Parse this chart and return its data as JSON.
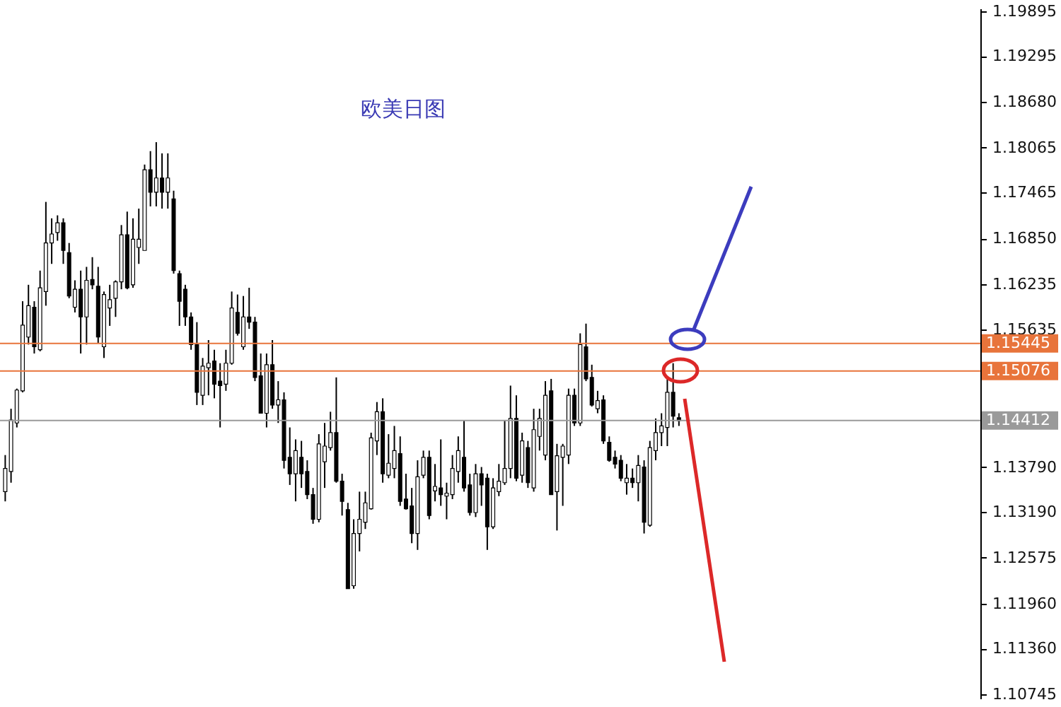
{
  "chart_data": {
    "type": "candlestick",
    "title": "欧美日图",
    "categories": [
      null,
      null,
      null,
      null,
      null,
      null,
      null,
      null,
      null,
      null,
      null,
      null,
      null,
      null,
      null,
      null,
      null,
      null,
      null,
      null,
      null,
      null,
      null,
      null,
      null,
      null,
      null,
      null,
      null,
      null,
      null,
      null,
      null,
      null,
      null,
      null,
      null,
      null,
      null,
      null,
      null,
      null,
      null,
      null,
      null,
      null,
      null,
      null,
      null,
      null,
      null,
      null,
      null,
      null,
      null,
      null,
      null,
      null,
      null,
      null,
      null,
      null,
      null,
      null,
      null,
      null,
      null,
      null,
      null,
      null,
      null,
      null,
      null,
      null,
      null,
      null,
      null,
      null,
      null,
      null,
      null,
      null,
      null,
      null,
      null,
      null,
      null,
      null,
      null,
      null,
      null,
      null,
      null,
      null,
      null,
      null,
      null,
      null,
      null,
      null,
      null,
      null,
      null,
      null,
      null,
      null,
      null,
      null,
      null,
      null,
      null,
      null,
      null,
      null,
      null,
      null,
      null,
      null,
      null,
      null,
      null,
      null,
      null,
      null,
      null,
      null,
      null,
      null,
      null,
      null,
      null,
      null,
      null,
      null,
      null,
      null,
      null,
      null,
      null,
      null,
      null,
      null,
      null,
      null,
      null,
      null,
      null,
      null,
      null,
      null,
      null,
      null,
      null,
      null,
      null,
      null,
      null,
      null,
      null,
      null,
      null,
      null,
      null,
      null,
      null,
      null,
      null,
      null
    ],
    "ohlc": [
      [
        1.1346,
        1.1395,
        1.1333,
        1.1377
      ],
      [
        1.1373,
        1.1457,
        1.1358,
        1.1442
      ],
      [
        1.1438,
        1.1484,
        1.1432,
        1.1482
      ],
      [
        1.1481,
        1.1601,
        1.1479,
        1.1569
      ],
      [
        1.1553,
        1.1623,
        1.1543,
        1.1595
      ],
      [
        1.1593,
        1.1601,
        1.1531,
        1.154
      ],
      [
        1.1536,
        1.1642,
        1.1534,
        1.1619
      ],
      [
        1.1614,
        1.1734,
        1.1595,
        1.1679
      ],
      [
        1.1679,
        1.1712,
        1.1651,
        1.1691
      ],
      [
        1.1693,
        1.1716,
        1.1682,
        1.1706
      ],
      [
        1.1706,
        1.1712,
        1.1651,
        1.1669
      ],
      [
        1.1666,
        1.1679,
        1.1605,
        1.1608
      ],
      [
        1.1593,
        1.1629,
        1.1586,
        1.1617
      ],
      [
        1.1617,
        1.1642,
        1.1531,
        1.158
      ],
      [
        1.158,
        1.1647,
        1.1543,
        1.1629
      ],
      [
        1.163,
        1.166,
        1.1617,
        1.1623
      ],
      [
        1.1621,
        1.1647,
        1.1545,
        1.1553
      ],
      [
        1.154,
        1.1614,
        1.1525,
        1.161
      ],
      [
        1.1592,
        1.1623,
        1.1568,
        1.1603
      ],
      [
        1.1605,
        1.1629,
        1.158,
        1.1627
      ],
      [
        1.1627,
        1.1703,
        1.1617,
        1.169
      ],
      [
        1.169,
        1.1721,
        1.1617,
        1.1619
      ],
      [
        1.1623,
        1.1712,
        1.1619,
        1.1684
      ],
      [
        1.1673,
        1.1725,
        1.1651,
        1.1684
      ],
      [
        1.1669,
        1.1784,
        1.1669,
        1.1777
      ],
      [
        1.1777,
        1.1802,
        1.1728,
        1.1747
      ],
      [
        1.1747,
        1.1814,
        1.1728,
        1.1766
      ],
      [
        1.1766,
        1.1799,
        1.1725,
        1.1747
      ],
      [
        1.1747,
        1.1799,
        1.1725,
        1.1766
      ],
      [
        1.1738,
        1.1749,
        1.1638,
        1.1642
      ],
      [
        1.1638,
        1.1642,
        1.1568,
        1.1601
      ],
      [
        1.1617,
        1.1623,
        1.1568,
        1.158
      ],
      [
        1.158,
        1.1586,
        1.1536,
        1.1543
      ],
      [
        1.1543,
        1.1573,
        1.1462,
        1.1479
      ],
      [
        1.1475,
        1.1525,
        1.1462,
        1.1514
      ],
      [
        1.1512,
        1.1549,
        1.1475,
        1.1518
      ],
      [
        1.1521,
        1.1536,
        1.1471,
        1.149
      ],
      [
        1.1494,
        1.1518,
        1.1432,
        1.1488
      ],
      [
        1.149,
        1.1536,
        1.1481,
        1.1518
      ],
      [
        1.1518,
        1.1614,
        1.1516,
        1.1592
      ],
      [
        1.1586,
        1.161,
        1.1555,
        1.1558
      ],
      [
        1.154,
        1.1608,
        1.1536,
        1.158
      ],
      [
        1.158,
        1.1619,
        1.1564,
        1.1573
      ],
      [
        1.1573,
        1.158,
        1.1494,
        1.1499
      ],
      [
        1.1501,
        1.1531,
        1.1451,
        1.1451
      ],
      [
        1.1451,
        1.1531,
        1.1432,
        1.1516
      ],
      [
        1.1516,
        1.1549,
        1.1457,
        1.1462
      ],
      [
        1.1462,
        1.1494,
        1.1438,
        1.1469
      ],
      [
        1.1469,
        1.1479,
        1.1377,
        1.1388
      ],
      [
        1.1392,
        1.1432,
        1.1355,
        1.137
      ],
      [
        1.137,
        1.1416,
        1.1333,
        1.1401
      ],
      [
        1.1392,
        1.1414,
        1.1351,
        1.137
      ],
      [
        1.1373,
        1.1388,
        1.1336,
        1.1342
      ],
      [
        1.1342,
        1.1351,
        1.1303,
        1.1309
      ],
      [
        1.1309,
        1.1423,
        1.1305,
        1.141
      ],
      [
        1.1386,
        1.1438,
        1.1351,
        1.1407
      ],
      [
        1.1405,
        1.1453,
        1.1401,
        1.1425
      ],
      [
        1.1425,
        1.1499,
        1.1358,
        1.136
      ],
      [
        1.136,
        1.137,
        1.1314,
        1.1333
      ],
      [
        1.1322,
        1.1331,
        1.1216,
        1.1216
      ],
      [
        1.122,
        1.1309,
        1.1216,
        1.129
      ],
      [
        1.129,
        1.1346,
        1.1266,
        1.1309
      ],
      [
        1.1305,
        1.1346,
        1.1296,
        1.1331
      ],
      [
        1.1323,
        1.1425,
        1.1322,
        1.1418
      ],
      [
        1.1414,
        1.1466,
        1.1395,
        1.1453
      ],
      [
        1.1453,
        1.1471,
        1.1358,
        1.137
      ],
      [
        1.1368,
        1.1423,
        1.1364,
        1.1384
      ],
      [
        1.1377,
        1.1434,
        1.1364,
        1.1401
      ],
      [
        1.1397,
        1.142,
        1.1327,
        1.1333
      ],
      [
        1.1336,
        1.137,
        1.1322,
        1.1323
      ],
      [
        1.1327,
        1.1351,
        1.1277,
        1.129
      ],
      [
        1.129,
        1.1388,
        1.1268,
        1.1366
      ],
      [
        1.1368,
        1.1401,
        1.1364,
        1.1392
      ],
      [
        1.1392,
        1.1401,
        1.1309,
        1.1314
      ],
      [
        1.1347,
        1.1383,
        1.1333,
        1.1353
      ],
      [
        1.1351,
        1.1416,
        1.1327,
        1.1342
      ],
      [
        1.134,
        1.1358,
        1.1309,
        1.1344
      ],
      [
        1.1342,
        1.1395,
        1.1336,
        1.1377
      ],
      [
        1.1373,
        1.142,
        1.1358,
        1.1401
      ],
      [
        1.1392,
        1.1442,
        1.1346,
        1.1351
      ],
      [
        1.1355,
        1.137,
        1.1314,
        1.1318
      ],
      [
        1.1318,
        1.1383,
        1.1312,
        1.137
      ],
      [
        1.137,
        1.1379,
        1.1327,
        1.1355
      ],
      [
        1.1364,
        1.137,
        1.1268,
        1.1299
      ],
      [
        1.1299,
        1.1364,
        1.1296,
        1.1351
      ],
      [
        1.1346,
        1.1383,
        1.134,
        1.136
      ],
      [
        1.1358,
        1.1442,
        1.1355,
        1.1377
      ],
      [
        1.1377,
        1.1488,
        1.1364,
        1.1444
      ],
      [
        1.1444,
        1.1475,
        1.136,
        1.1364
      ],
      [
        1.1368,
        1.1425,
        1.1358,
        1.1414
      ],
      [
        1.1405,
        1.1414,
        1.1351,
        1.1358
      ],
      [
        1.1351,
        1.1457,
        1.1346,
        1.1429
      ],
      [
        1.142,
        1.1457,
        1.1401,
        1.1444
      ],
      [
        1.1395,
        1.1494,
        1.1388,
        1.1475
      ],
      [
        1.1481,
        1.1497,
        1.1342,
        1.1342
      ],
      [
        1.1346,
        1.141,
        1.1294,
        1.1394
      ],
      [
        1.1392,
        1.141,
        1.1327,
        1.1407
      ],
      [
        1.1395,
        1.1484,
        1.1383,
        1.1475
      ],
      [
        1.1475,
        1.1484,
        1.1434,
        1.1438
      ],
      [
        1.1438,
        1.1558,
        1.1434,
        1.1543
      ],
      [
        1.154,
        1.1571,
        1.1494,
        1.1497
      ],
      [
        1.1499,
        1.1516,
        1.146,
        1.1462
      ],
      [
        1.1457,
        1.1481,
        1.1451,
        1.1468
      ],
      [
        1.1469,
        1.1475,
        1.141,
        1.1414
      ],
      [
        1.1412,
        1.142,
        1.1386,
        1.1388
      ],
      [
        1.1392,
        1.1401,
        1.1377,
        1.1383
      ],
      [
        1.1388,
        1.1395,
        1.136,
        1.1364
      ],
      [
        1.1358,
        1.1383,
        1.1342,
        1.1364
      ],
      [
        1.1364,
        1.1377,
        1.1351,
        1.1358
      ],
      [
        1.1358,
        1.1395,
        1.1333,
        1.1381
      ],
      [
        1.1379,
        1.1388,
        1.129,
        1.1305
      ],
      [
        1.1301,
        1.1414,
        1.1299,
        1.1405
      ],
      [
        1.1401,
        1.1444,
        1.1388,
        1.1425
      ],
      [
        1.1425,
        1.1451,
        1.1407,
        1.1434
      ],
      [
        1.1432,
        1.1497,
        1.1407,
        1.1479
      ],
      [
        1.1479,
        1.1518,
        1.1432,
        1.1447
      ],
      [
        1.1445,
        1.1451,
        1.1434,
        1.1441
      ],
      null,
      null,
      null,
      null,
      null,
      null,
      null,
      null,
      null,
      null,
      null,
      null,
      null,
      null,
      null,
      null,
      null,
      null,
      null,
      null,
      null,
      null,
      null,
      null,
      null,
      null,
      null,
      null,
      null,
      null,
      null,
      null,
      null,
      null,
      null,
      null,
      null,
      null,
      null,
      null,
      null,
      null,
      null,
      null,
      null,
      null,
      null,
      null,
      null,
      null,
      null
    ],
    "ylim": [
      1.1069,
      1.1993
    ],
    "yticks": [
      1.19895,
      1.19295,
      {
        "value": 1.1868,
        "label": "1.18680"
      },
      1.18065,
      1.17465,
      {
        "value": 1.1685,
        "label": "1.16850"
      },
      1.16235,
      1.15635,
      {
        "value": 1.1379,
        "label": "1.13790"
      },
      {
        "value": 1.1319,
        "label": "1.13190"
      },
      1.12575,
      {
        "value": 1.1196,
        "label": "1.11960"
      },
      {
        "value": 1.1136,
        "label": "1.11360"
      },
      1.10745
    ],
    "tick_labels": "y",
    "grid": false,
    "ref_lines": [
      {
        "axis": "y",
        "value": 1.15445,
        "label": "1.15445",
        "color": "#e8743b"
      },
      {
        "axis": "y",
        "value": 1.15076,
        "label": "1.15076",
        "color": "#e8743b"
      },
      {
        "axis": "y",
        "value": 1.14412,
        "label": "1.14412",
        "color": "#9a9a9a"
      }
    ]
  }
}
